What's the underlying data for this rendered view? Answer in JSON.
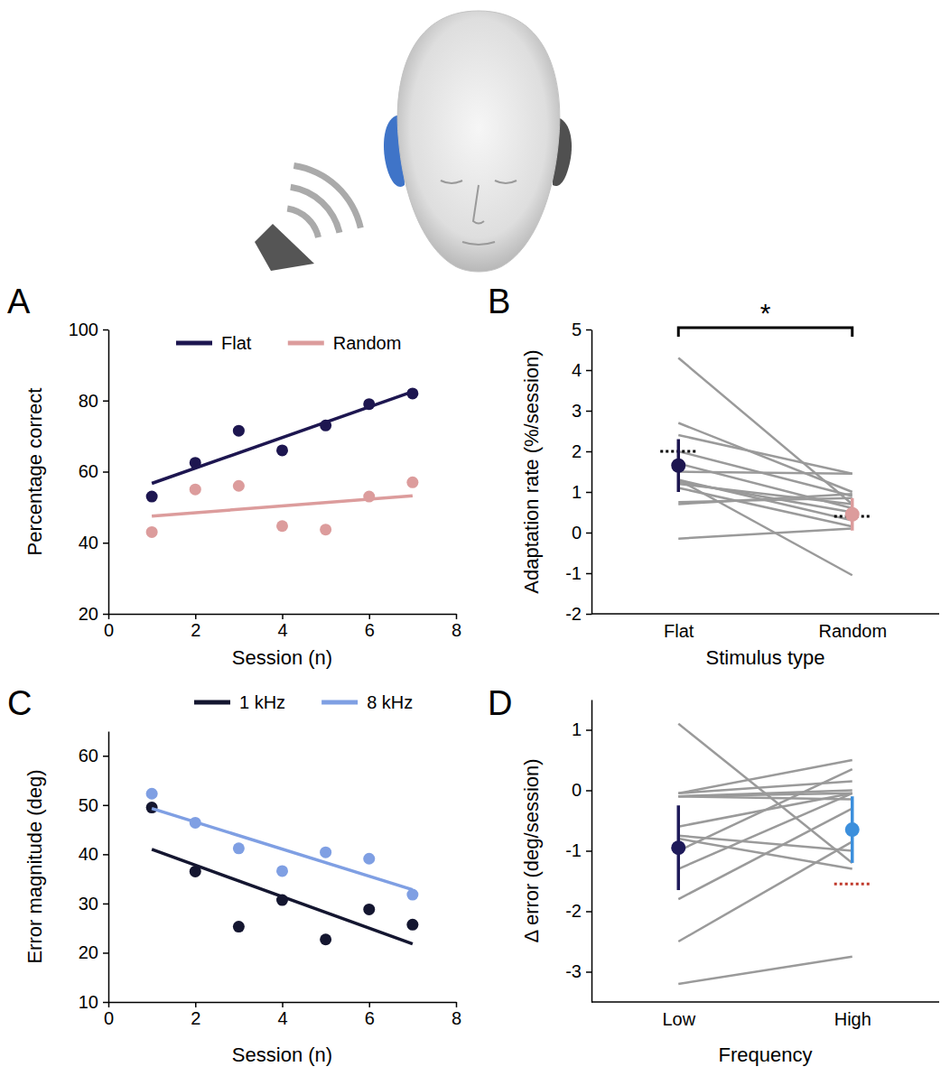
{
  "chart_data": [
    {
      "type": "scatter",
      "panel": "A",
      "x_label": "Session (n)",
      "y_label": "Percentage correct",
      "x": [
        1,
        2,
        3,
        4,
        5,
        6,
        7
      ],
      "xlim": [
        0,
        8
      ],
      "xticks": [
        0,
        2,
        4,
        6,
        8
      ],
      "ylim": [
        20,
        100
      ],
      "yticks": [
        20,
        40,
        60,
        80,
        100
      ],
      "legend": "top",
      "series": [
        {
          "name": "Flat",
          "color": "#1d1650",
          "values": [
            53,
            62.5,
            71.5,
            66,
            73,
            79,
            82
          ],
          "fit_x": [
            1,
            7
          ],
          "fit_values": [
            56.7,
            82.5
          ]
        },
        {
          "name": "Random",
          "color": "#dc9c9c",
          "values": [
            43,
            55,
            56,
            44.7,
            43.7,
            53,
            57
          ],
          "fit_x": [
            1,
            7
          ],
          "fit_values": [
            47.5,
            53.2
          ]
        }
      ]
    },
    {
      "type": "paired",
      "panel": "B",
      "x_label": "Stimulus type",
      "y_label": "Adaptation rate (%/session)",
      "categories": [
        "Flat",
        "Random"
      ],
      "ylim": [
        -2,
        5
      ],
      "yticks": [
        -2,
        -1,
        0,
        1,
        2,
        3,
        4,
        5
      ],
      "color": "#9a9a9a",
      "series": [
        {
          "values": [
            4.3,
            0.7
          ]
        },
        {
          "values": [
            2.7,
            1.0
          ]
        },
        {
          "values": [
            2.4,
            1.45
          ]
        },
        {
          "values": [
            2.0,
            0.9
          ]
        },
        {
          "values": [
            1.7,
            0.6
          ]
        },
        {
          "values": [
            1.5,
            1.45
          ]
        },
        {
          "values": [
            1.3,
            0.3
          ]
        },
        {
          "values": [
            1.25,
            0.5
          ]
        },
        {
          "values": [
            1.2,
            0.7
          ]
        },
        {
          "values": [
            1.1,
            0.15
          ]
        },
        {
          "values": [
            0.75,
            0.85
          ]
        },
        {
          "values": [
            0.7,
            0.95
          ]
        },
        {
          "values": [
            -0.15,
            0.1
          ]
        },
        {
          "values": [
            1.3,
            -1.05
          ]
        }
      ],
      "summary": {
        "values": [
          1.65,
          0.45
        ],
        "error": [
          0.65,
          0.4
        ],
        "colors": [
          "#1d1650",
          "#dc9c9c"
        ]
      },
      "reference": {
        "values": [
          2.0,
          0.4
        ],
        "color": "#000000",
        "line_style": "dotted"
      },
      "annotations": [
        {
          "text": "*"
        }
      ]
    },
    {
      "type": "scatter",
      "panel": "C",
      "x_label": "Session (n)",
      "y_label": "Error magnitude (deg)",
      "x": [
        1,
        2,
        3,
        4,
        5,
        6,
        7
      ],
      "xlim": [
        0,
        8
      ],
      "xticks": [
        0,
        2,
        4,
        6,
        8
      ],
      "ylim": [
        10,
        65
      ],
      "yticks": [
        10,
        20,
        30,
        40,
        50,
        60
      ],
      "legend": "top",
      "series": [
        {
          "name": "1 kHz",
          "color": "#141630",
          "values": [
            49.5,
            36.5,
            25.3,
            30.7,
            22.7,
            28.8,
            25.7
          ],
          "fit_x": [
            1,
            7
          ],
          "fit_values": [
            41,
            21.8
          ]
        },
        {
          "name": "8 kHz",
          "color": "#7f9fe3",
          "values": [
            52.3,
            46.4,
            41.2,
            36.6,
            40.4,
            39.1,
            31.8
          ],
          "fit_x": [
            1,
            7
          ],
          "fit_values": [
            49.3,
            32.8
          ]
        }
      ]
    },
    {
      "type": "paired",
      "panel": "D",
      "x_label": "Frequency",
      "y_label": "Δ error (deg/session)",
      "categories": [
        "Low",
        "High"
      ],
      "ylim": [
        -3.5,
        1.5
      ],
      "yticks": [
        -3,
        -2,
        -1,
        0,
        1
      ],
      "color": "#9a9a9a",
      "series": [
        {
          "values": [
            1.1,
            -1.2
          ]
        },
        {
          "values": [
            -0.05,
            0.5
          ]
        },
        {
          "values": [
            -0.05,
            0.15
          ]
        },
        {
          "values": [
            -0.1,
            0.0
          ]
        },
        {
          "values": [
            -0.1,
            -0.05
          ]
        },
        {
          "values": [
            -0.1,
            -0.15
          ]
        },
        {
          "values": [
            -0.6,
            -0.05
          ]
        },
        {
          "values": [
            -0.75,
            -1.0
          ]
        },
        {
          "values": [
            -0.8,
            -1.3
          ]
        },
        {
          "values": [
            -1.0,
            0.35
          ]
        },
        {
          "values": [
            -1.3,
            -0.05
          ]
        },
        {
          "values": [
            -1.8,
            -0.3
          ]
        },
        {
          "values": [
            -2.5,
            -0.85
          ]
        },
        {
          "values": [
            -3.2,
            -2.75
          ]
        }
      ],
      "summary": {
        "values": [
          -0.95,
          -0.65
        ],
        "error": [
          0.7,
          0.55
        ],
        "colors": [
          "#1e1a5a",
          "#3c8fdc"
        ]
      },
      "reference": {
        "values": [
          null,
          -1.55
        ],
        "color": "#c0392b",
        "line_style": "dotted"
      }
    }
  ]
}
